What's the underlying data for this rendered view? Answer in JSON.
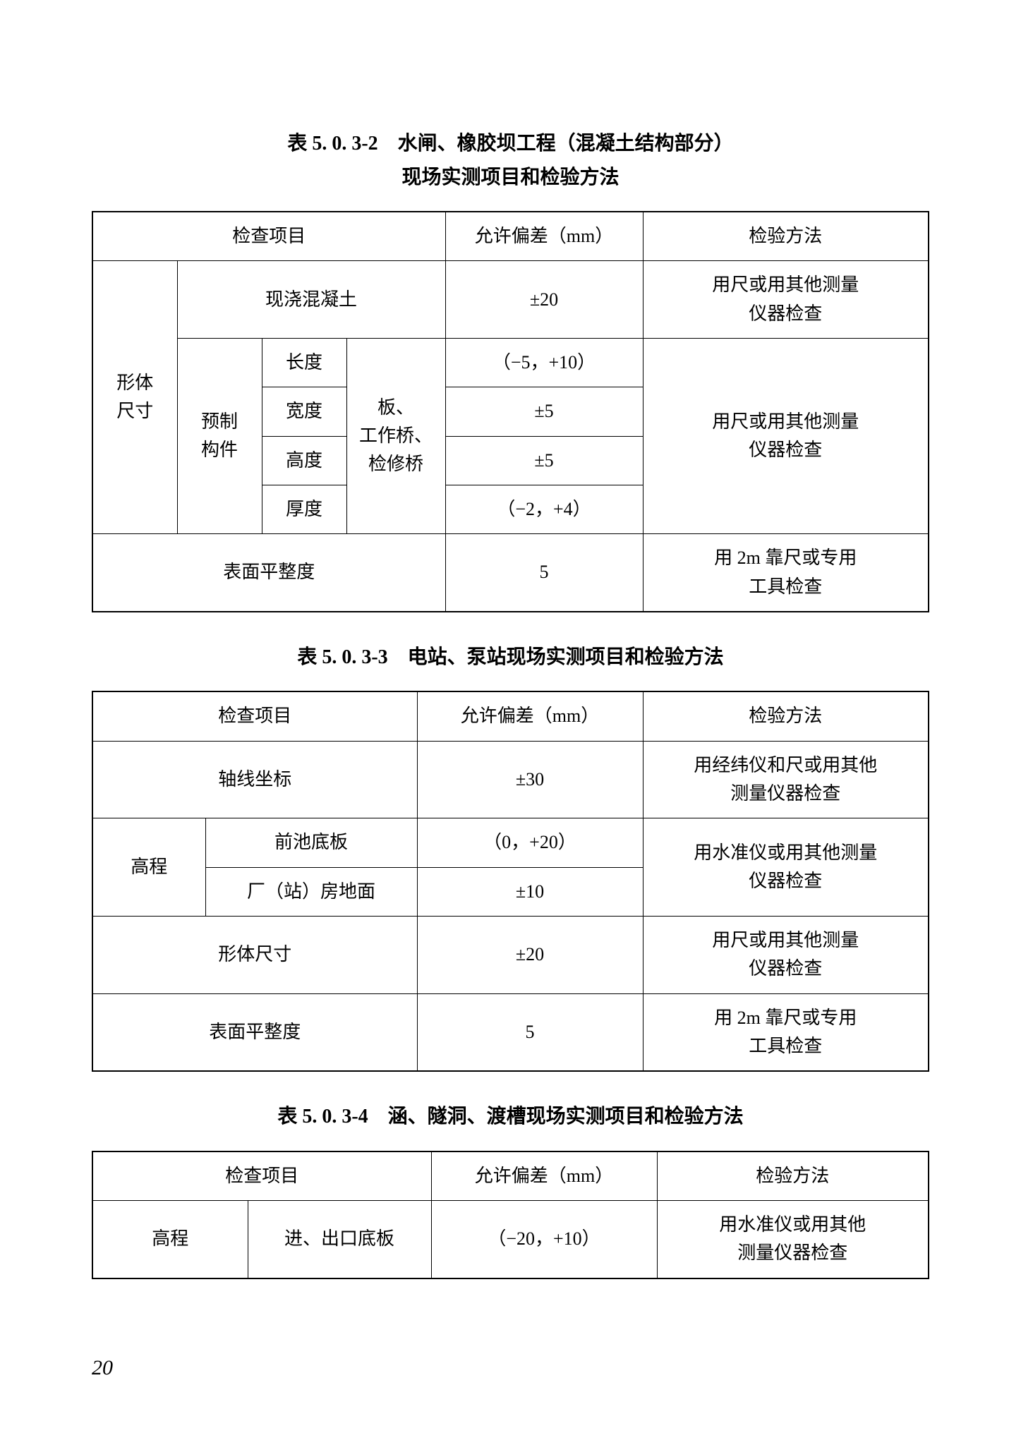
{
  "page_number": "20",
  "table1": {
    "title_line1": "表 5. 0. 3-2　水闸、橡胶坝工程（混凝土结构部分）",
    "title_line2": "现场实测项目和检验方法",
    "header": {
      "col_item": "检查项目",
      "col_tol": "允许偏差（mm）",
      "col_method": "检验方法"
    },
    "r1": {
      "group": "形体\n尺寸",
      "sub": "现浇混凝土",
      "tol": "±20",
      "method": "用尺或用其他测量\n仪器检查"
    },
    "r2_group": "预制\n构件",
    "r2_mid": "板、\n工作桥、\n检修桥",
    "r2": {
      "dim": "长度",
      "tol": "（−5，+10）"
    },
    "r3": {
      "dim": "宽度",
      "tol": "±5"
    },
    "r4": {
      "dim": "高度",
      "tol": "±5"
    },
    "r5": {
      "dim": "厚度",
      "tol": "（−2，+4）"
    },
    "r2_method": "用尺或用其他测量\n仪器检查",
    "r6": {
      "item": "表面平整度",
      "tol": "5",
      "method": "用 2m 靠尺或专用\n工具检查"
    }
  },
  "table2": {
    "title": "表 5. 0. 3-3　电站、泵站现场实测项目和检验方法",
    "header": {
      "col_item": "检查项目",
      "col_tol": "允许偏差（mm）",
      "col_method": "检验方法"
    },
    "r1": {
      "item": "轴线坐标",
      "tol": "±30",
      "method": "用经纬仪和尺或用其他\n测量仪器检查"
    },
    "r2_group": "高程",
    "r2": {
      "sub": "前池底板",
      "tol": "（0，+20）"
    },
    "r3": {
      "sub": "厂（站）房地面",
      "tol": "±10"
    },
    "r2_method": "用水准仪或用其他测量\n仪器检查",
    "r4": {
      "item": "形体尺寸",
      "tol": "±20",
      "method": "用尺或用其他测量\n仪器检查"
    },
    "r5": {
      "item": "表面平整度",
      "tol": "5",
      "method": "用 2m 靠尺或专用\n工具检查"
    }
  },
  "table3": {
    "title": "表 5. 0. 3-4　涵、隧洞、渡槽现场实测项目和检验方法",
    "header": {
      "col_item": "检查项目",
      "col_tol": "允许偏差（mm）",
      "col_method": "检验方法"
    },
    "r1": {
      "group": "高程",
      "sub": "进、出口底板",
      "tol": "（−20，+10）",
      "method": "用水准仪或用其他\n测量仪器检查"
    }
  }
}
